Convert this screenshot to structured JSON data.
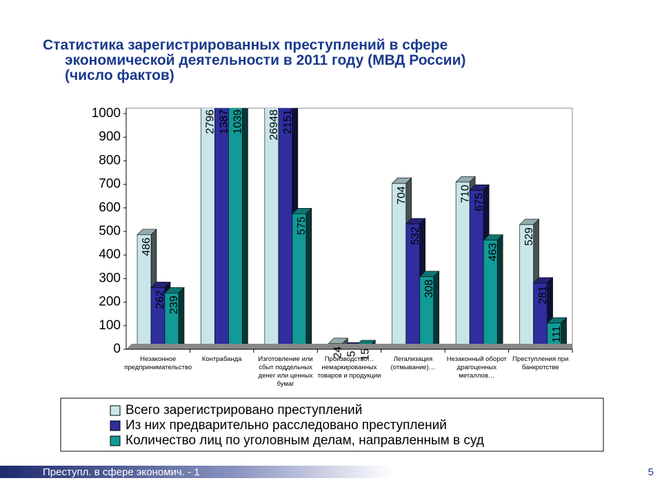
{
  "page": {
    "title": "Статистика зарегистрированных преступлений в сфере\nэкономической деятельности в 2011 году (МВД России)\n(число фактов)",
    "footer": "Преступл. в сфере экономич. - 1",
    "page_number": "5"
  },
  "chart_data": {
    "type": "bar3d",
    "categories": [
      "Незаконное\nпредпринимательство",
      "Контрабанда",
      "Изготовление или\nсбыт поддельных\nденег или ценных\nбумаг",
      "Производство…\nнемаркированных\nтоваров и продукции",
      "Легализация\n(отмывание)…",
      "Незаконный оборот\nдрагоценных\nметаллов…",
      "Преступления при\nбанкротстве"
    ],
    "series": [
      {
        "name": "Всего зарегистрировано преступлений",
        "color": "#c8e6ea",
        "values": [
          486,
          2796,
          26948,
          24,
          704,
          710,
          529
        ]
      },
      {
        "name": "Из них предварительно расследовано преступлений",
        "color": "#2e2e9e",
        "values": [
          262,
          1387,
          2151,
          5,
          532,
          675,
          281
        ]
      },
      {
        "name": "Количество лиц по уголовным делам, направленным в суд",
        "color": "#129a96",
        "values": [
          239,
          1039,
          575,
          15,
          308,
          463,
          111
        ]
      }
    ],
    "ylim": [
      0,
      1000
    ],
    "yticks": [
      0,
      100,
      200,
      300,
      400,
      500,
      600,
      700,
      800,
      900,
      1000
    ]
  }
}
